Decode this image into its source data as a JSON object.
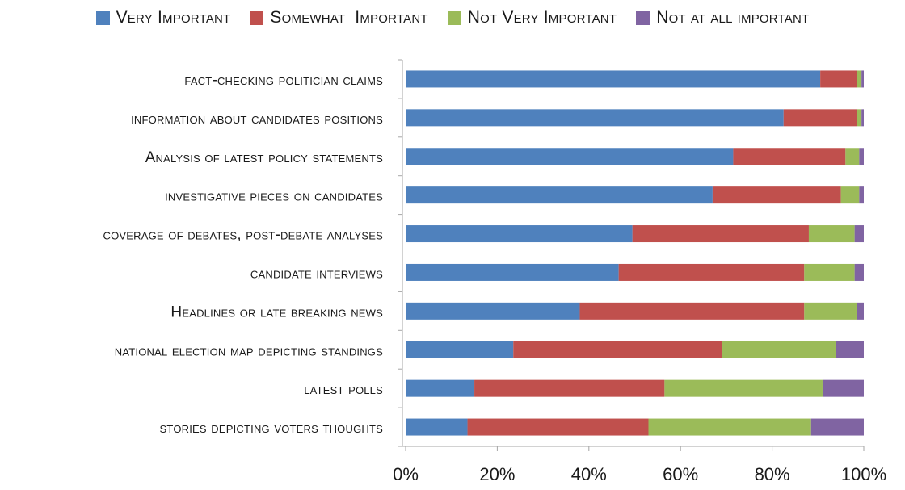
{
  "chart_data": {
    "type": "bar",
    "orientation": "horizontal",
    "stacked": "100%",
    "title": "",
    "xlabel": "",
    "ylabel": "",
    "xlim": [
      0,
      100
    ],
    "x_ticks": [
      "0%",
      "20%",
      "40%",
      "60%",
      "80%",
      "100%"
    ],
    "grid": false,
    "legend_position": "top",
    "categories": [
      "fact-checking politician claims",
      "information about candidates positions",
      "Analysis of latest policy statements",
      "investigative pieces on candidates",
      "coverage of debates, post-debate analyses",
      "candidate interviews",
      "Headlines or late breaking news",
      "national election map depicting standings",
      "latest polls",
      "stories depicting voters thoughts"
    ],
    "series": [
      {
        "name": "Very Important",
        "color": "#4f81bd",
        "values": [
          90.5,
          82.5,
          71.5,
          67,
          49.5,
          46.5,
          38,
          23.5,
          15,
          13.5
        ]
      },
      {
        "name": "Somewhat  Important",
        "color": "#c0504d",
        "values": [
          8,
          16,
          24.5,
          28,
          38.5,
          40.5,
          49,
          45.5,
          41.5,
          39.5
        ]
      },
      {
        "name": "Not Very Important",
        "color": "#9bbb59",
        "values": [
          1,
          1,
          3,
          4,
          10,
          11,
          11.5,
          25,
          34.5,
          35.5
        ]
      },
      {
        "name": "Not at all important",
        "color": "#8064a2",
        "values": [
          0.5,
          0.5,
          1,
          1,
          2,
          2,
          1.5,
          6,
          9,
          11.5
        ]
      }
    ]
  }
}
